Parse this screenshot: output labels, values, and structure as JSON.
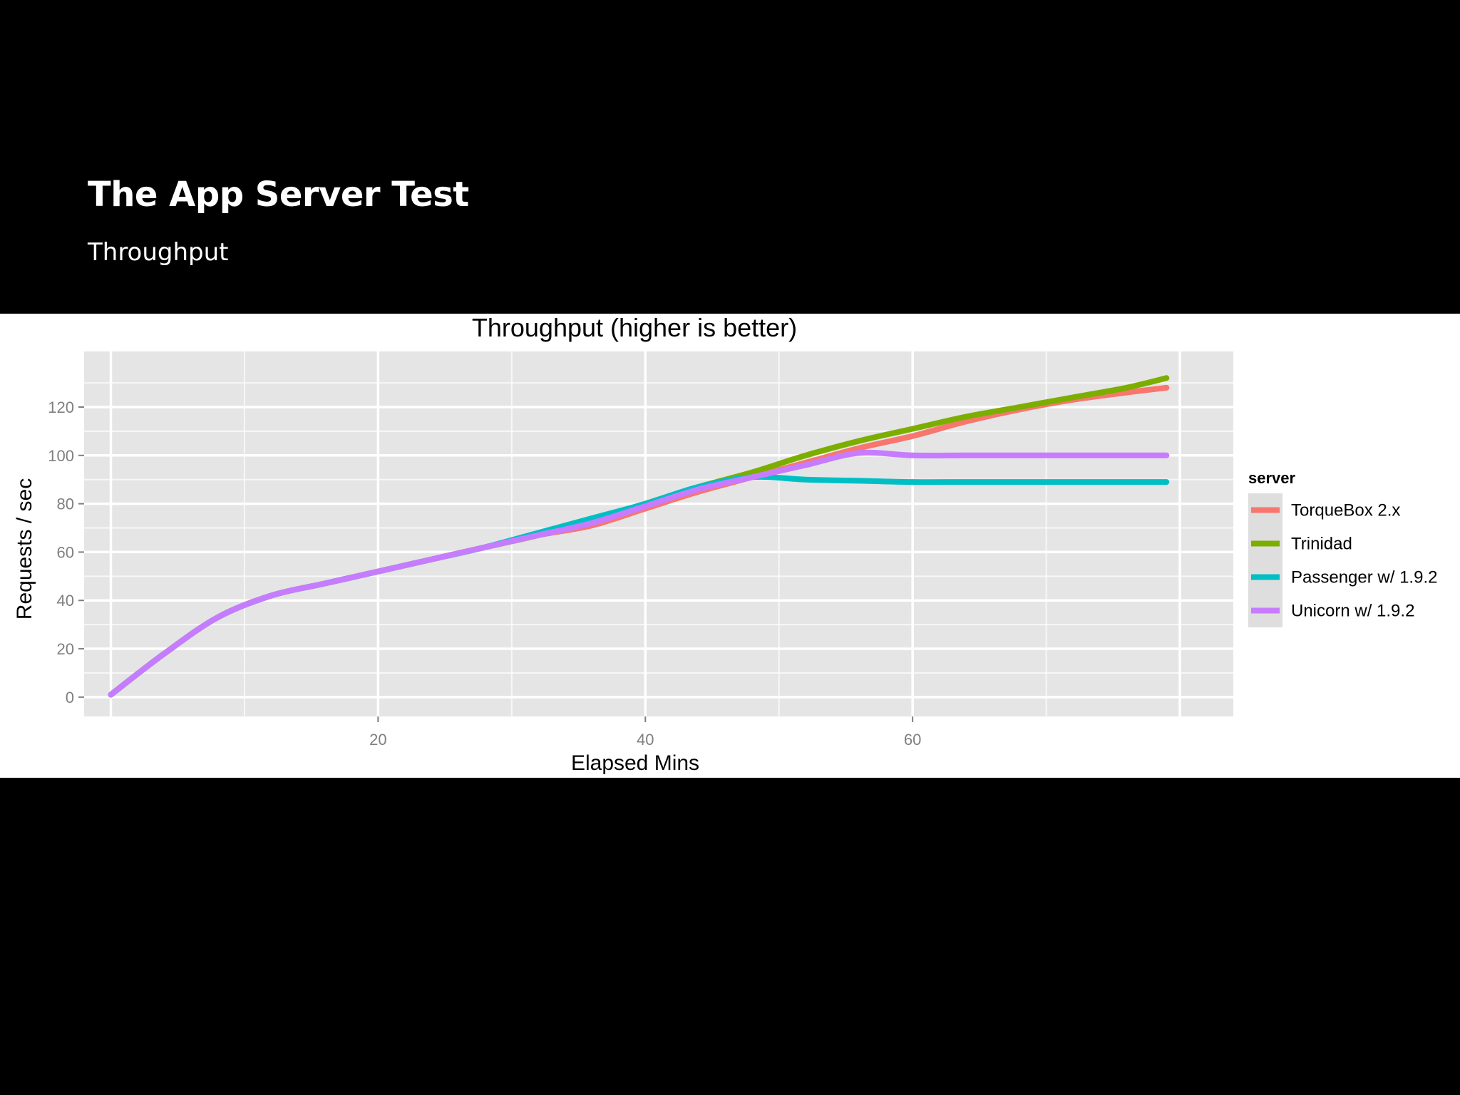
{
  "slide": {
    "title": "The App Server Test",
    "subtitle": "Throughput"
  },
  "colors": {
    "slide_background": "#000000",
    "plot_background": "#e5e5e5",
    "gridline": "#ffffff",
    "text": "#000000",
    "tick_text": "#7f7f7f"
  },
  "chart_data": {
    "type": "line",
    "title": "Throughput (higher is better)",
    "xlabel": "Elapsed Mins",
    "ylabel": "Requests / sec",
    "xlim": [
      -2,
      84
    ],
    "ylim": [
      -8,
      143
    ],
    "x_ticks": [
      20,
      40,
      60
    ],
    "y_ticks": [
      0,
      20,
      40,
      60,
      80,
      100,
      120
    ],
    "grid": true,
    "legend": {
      "title": "server",
      "position": "right"
    },
    "x": [
      0,
      4,
      8,
      12,
      16,
      20,
      24,
      28,
      32,
      36,
      40,
      44,
      48,
      52,
      56,
      60,
      64,
      68,
      72,
      76,
      79
    ],
    "series": [
      {
        "name": "TorqueBox 2.x",
        "color": "#f8766d",
        "values": [
          1,
          18,
          33,
          42,
          47,
          52,
          57,
          62,
          67,
          71,
          78,
          85,
          91,
          97,
          103,
          108,
          114,
          119,
          123,
          126,
          128
        ]
      },
      {
        "name": "Trinidad",
        "color": "#7cae00",
        "values": [
          1,
          18,
          33,
          42,
          47,
          52,
          57,
          62,
          67,
          73,
          80,
          87,
          93,
          100,
          106,
          111,
          116,
          120,
          124,
          128,
          132
        ]
      },
      {
        "name": "Passenger w/ 1.9.2",
        "color": "#00bfc4",
        "values": [
          1,
          18,
          33,
          42,
          47,
          52,
          57,
          62,
          68,
          74,
          80,
          87,
          91,
          90,
          89.5,
          89,
          89,
          89,
          89,
          89,
          89
        ]
      },
      {
        "name": "Unicorn w/ 1.9.2",
        "color": "#c77cff",
        "values": [
          1,
          18,
          33,
          42,
          47,
          52,
          57,
          62,
          67,
          72,
          79,
          86,
          91,
          96,
          101,
          100,
          100,
          100,
          100,
          100,
          100
        ]
      }
    ]
  }
}
